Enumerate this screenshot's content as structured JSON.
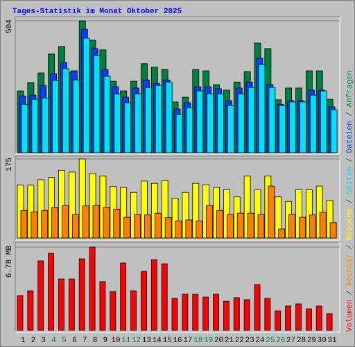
{
  "title": "Tages-Statistik im Monat Oktober 2025",
  "categories": [
    "1",
    "2",
    "3",
    "4",
    "5",
    "6",
    "7",
    "8",
    "9",
    "10",
    "11",
    "12",
    "13",
    "14",
    "15",
    "16",
    "17",
    "18",
    "19",
    "20",
    "21",
    "22",
    "23",
    "24",
    "25",
    "26",
    "27",
    "28",
    "29",
    "30",
    "31"
  ],
  "highlight_categories": [
    "4",
    "5",
    "11",
    "12",
    "18",
    "19",
    "25",
    "26"
  ],
  "highlight_color": "#008040",
  "category_color": "#000000",
  "legend_separator": " / ",
  "legend_order": [
    [
      2,
      0
    ],
    [
      1,
      1
    ],
    [
      1,
      0
    ],
    [
      0,
      2
    ],
    [
      0,
      1
    ],
    [
      0,
      0
    ]
  ],
  "chart_data": [
    {
      "type": "bar",
      "ylim": [
        0,
        504
      ],
      "yticks": [
        504
      ],
      "grid": true,
      "series": [
        {
          "name": "Anfragen",
          "color": "#008040",
          "values": [
            236,
            268,
            305,
            377,
            406,
            308,
            504,
            430,
            393,
            273,
            236,
            273,
            340,
            327,
            318,
            194,
            212,
            318,
            313,
            260,
            239,
            270,
            310,
            419,
            398,
            202,
            247,
            247,
            313,
            313,
            204
          ]
        },
        {
          "name": "Dateien",
          "color": "#0040ff",
          "values": [
            217,
            220,
            257,
            302,
            345,
            313,
            472,
            398,
            318,
            252,
            212,
            247,
            278,
            265,
            278,
            167,
            191,
            252,
            252,
            244,
            199,
            247,
            270,
            361,
            260,
            185,
            199,
            199,
            239,
            239,
            175
          ]
        },
        {
          "name": "Seiten",
          "color": "#00e0ff",
          "values": [
            185,
            204,
            209,
            276,
            321,
            278,
            438,
            371,
            292,
            225,
            191,
            225,
            249,
            257,
            270,
            146,
            172,
            236,
            225,
            225,
            180,
            225,
            249,
            337,
            249,
            180,
            194,
            194,
            220,
            236,
            164
          ]
        }
      ]
    },
    {
      "type": "bar",
      "ylim": [
        0,
        175
      ],
      "yticks": [
        175
      ],
      "grid": true,
      "series": [
        {
          "name": "Besuche",
          "color": "#ffff00",
          "values": [
            117,
            117,
            129,
            134,
            150,
            146,
            175,
            143,
            137,
            114,
            112,
            101,
            126,
            121,
            127,
            88,
            101,
            121,
            118,
            112,
            107,
            91,
            137,
            107,
            137,
            91,
            81,
            107,
            107,
            115,
            83
          ]
        },
        {
          "name": "Rechner",
          "color": "#ff8000",
          "values": [
            61,
            58,
            61,
            68,
            72,
            52,
            71,
            72,
            68,
            64,
            46,
            52,
            51,
            55,
            45,
            38,
            40,
            38,
            72,
            61,
            52,
            55,
            55,
            52,
            115,
            20,
            52,
            46,
            51,
            57,
            34
          ]
        }
      ]
    },
    {
      "type": "bar",
      "ylim": [
        0,
        6.78
      ],
      "yticks": [
        {
          "value": 6.78,
          "label": "6.78 MB"
        }
      ],
      "grid": true,
      "series": [
        {
          "name": "Volumen",
          "color": "#ff0000",
          "values": [
            2.83,
            3.22,
            5.65,
            6.27,
            4.18,
            4.18,
            5.82,
            6.78,
            3.96,
            3.16,
            5.48,
            3.22,
            4.8,
            5.76,
            5.42,
            2.6,
            2.94,
            2.94,
            2.71,
            2.94,
            2.37,
            2.66,
            2.49,
            3.73,
            2.6,
            1.58,
            1.98,
            2.15,
            1.75,
            1.98,
            1.36
          ]
        }
      ]
    }
  ]
}
